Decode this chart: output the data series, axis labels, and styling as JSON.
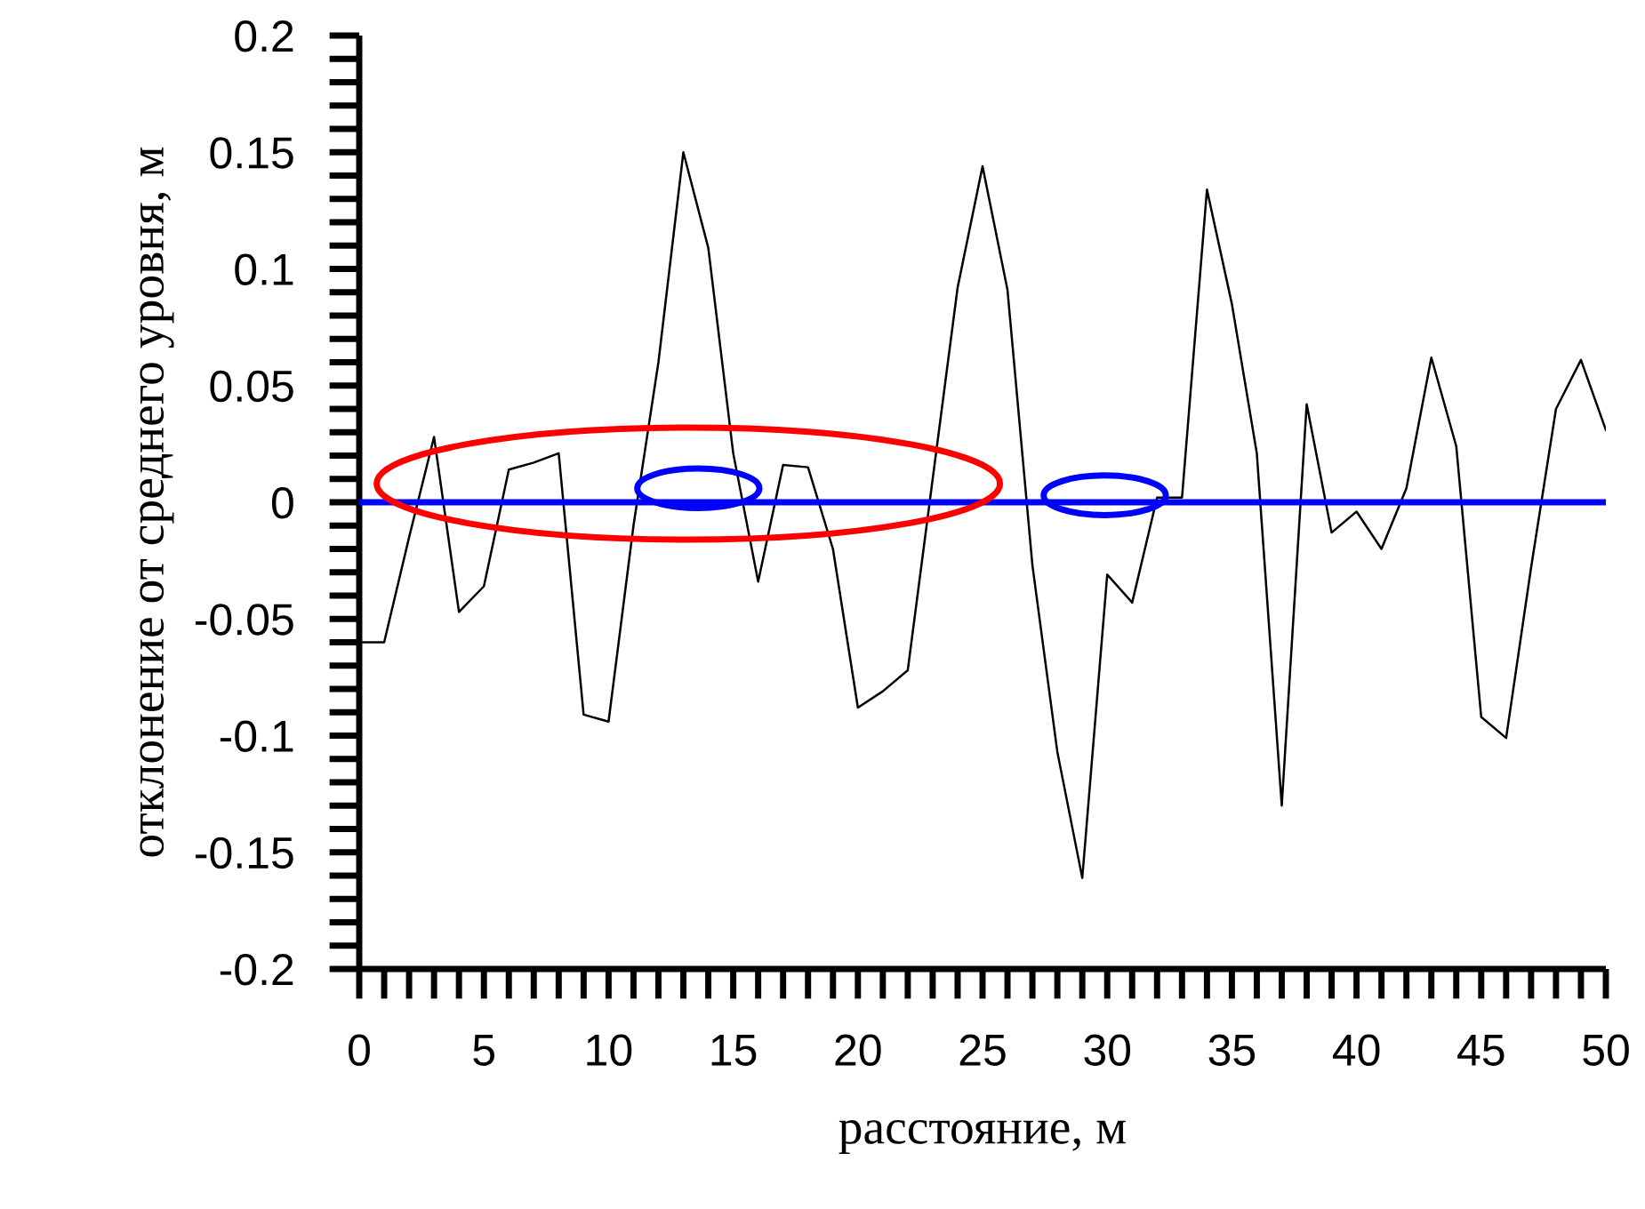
{
  "chart_data": {
    "type": "line",
    "xlabel": "расстояние, м",
    "ylabel": "отклонение от среднего уровня, м",
    "x": [
      0,
      1,
      2,
      3,
      4,
      5,
      6,
      7,
      8,
      9,
      10,
      11,
      12,
      13,
      14,
      15,
      16,
      17,
      18,
      19,
      20,
      21,
      22,
      23,
      24,
      25,
      26,
      27,
      28,
      29,
      30,
      31,
      32,
      33,
      34,
      35,
      36,
      37,
      38,
      39,
      40,
      41,
      42,
      43,
      44,
      45,
      46,
      47,
      48,
      49,
      50
    ],
    "series": [
      {
        "color": "#000000",
        "values": [
          -0.06,
          -0.06,
          -0.015,
          0.028,
          -0.047,
          -0.036,
          0.014,
          0.017,
          0.021,
          -0.091,
          -0.094,
          -0.01,
          0.06,
          0.15,
          0.109,
          0.021,
          -0.034,
          0.016,
          0.015,
          -0.02,
          -0.088,
          -0.081,
          -0.072,
          0.01,
          0.092,
          0.144,
          0.091,
          -0.027,
          -0.107,
          -0.161,
          -0.031,
          -0.043,
          0.002,
          0.002,
          0.134,
          0.085,
          0.021,
          -0.13,
          0.042,
          -0.013,
          -0.004,
          -0.02,
          0.006,
          0.062,
          0.024,
          -0.092,
          -0.101,
          -0.028,
          0.04,
          0.061,
          0.031
        ]
      }
    ],
    "xlim": [
      0,
      50
    ],
    "xticks": [
      0,
      5,
      10,
      15,
      20,
      25,
      30,
      35,
      40,
      45,
      50
    ],
    "ylim": [
      -0.2,
      0.2
    ],
    "yticks": [
      -0.2,
      -0.15,
      -0.1,
      -0.05,
      0,
      0.05,
      0.1,
      0.15,
      0.2
    ],
    "ref_lines": [
      {
        "axis": "y",
        "value": 0,
        "color": "#0000ff"
      }
    ],
    "grid": false,
    "legend": false,
    "marker": "none",
    "line_style": "solid"
  }
}
